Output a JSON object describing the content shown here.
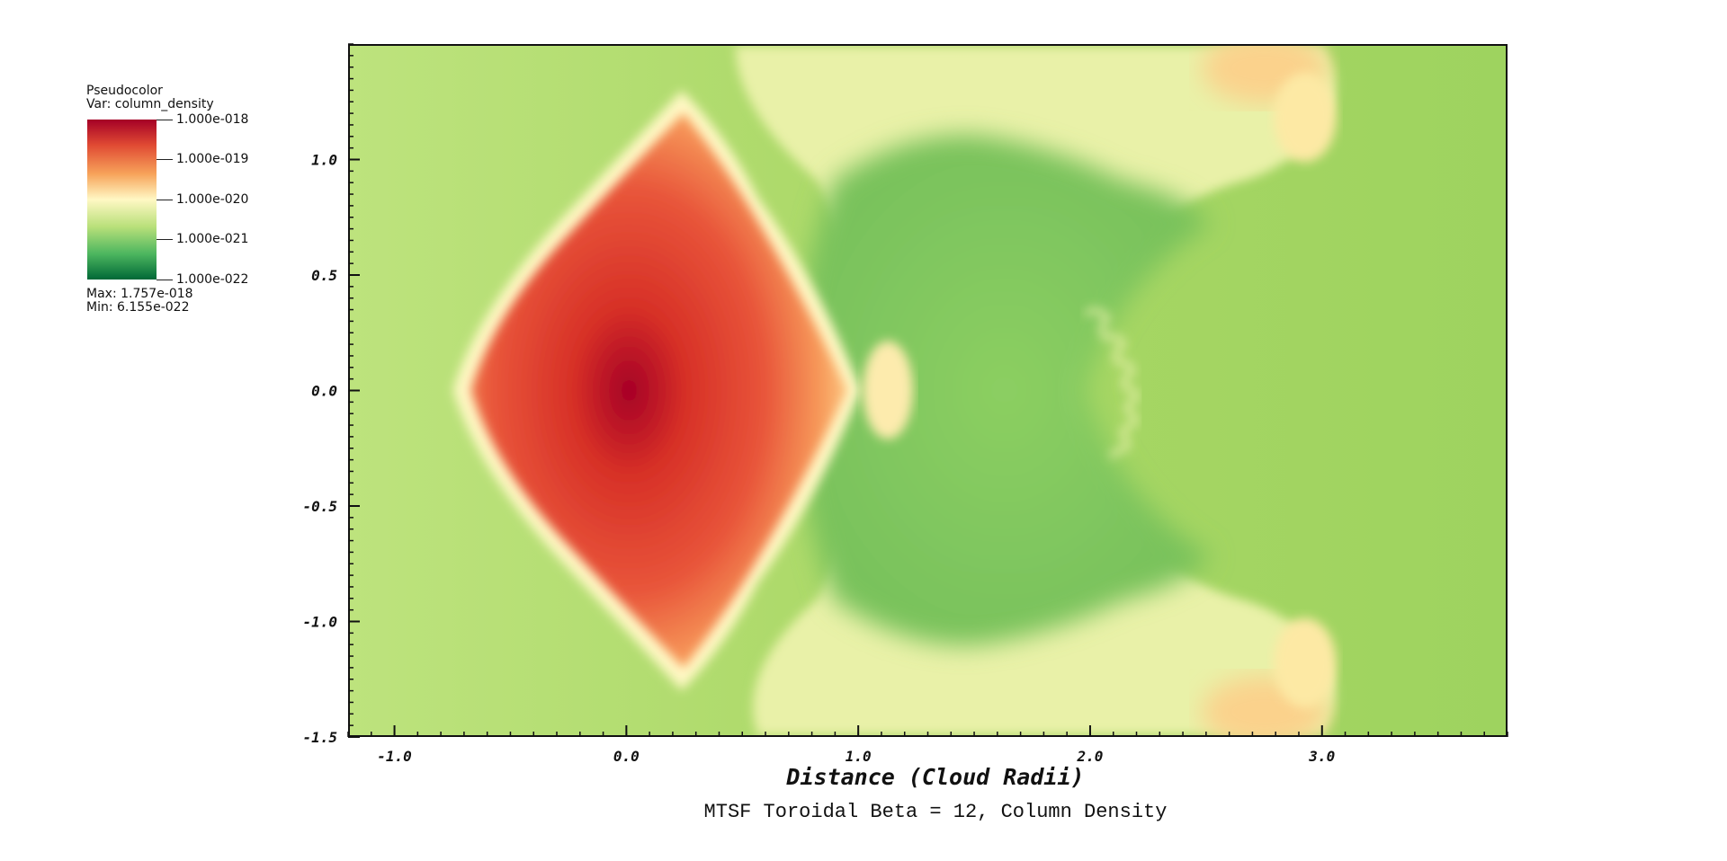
{
  "legend": {
    "plot_type": "Pseudocolor",
    "var_label": "Var: column_density",
    "ticks": [
      "1.000e-018",
      "1.000e-019",
      "1.000e-020",
      "1.000e-021",
      "1.000e-022"
    ],
    "max_label": "Max:  1.757e-018",
    "min_label": "Min:  6.155e-022",
    "colormap": [
      "#a50026",
      "#e04a33",
      "#f7a35a",
      "#fff8c4",
      "#b9e07a",
      "#4cb65f",
      "#006837"
    ]
  },
  "chart_data": {
    "type": "heatmap",
    "title": "MTSF Toroidal Beta = 12, Column Density",
    "xlabel": "Distance (Cloud Radii)",
    "ylabel": "",
    "xlim": [
      -1.2,
      3.8
    ],
    "ylim": [
      -1.5,
      1.5
    ],
    "xticks": [
      -1.0,
      0.0,
      1.0,
      2.0,
      3.0
    ],
    "xtick_labels": [
      "-1.0",
      "0.0",
      "1.0",
      "2.0",
      "3.0"
    ],
    "yticks": [
      1.0,
      0.5,
      0.0,
      -0.5,
      -1.0,
      -1.5
    ],
    "ytick_labels": [
      "1.0",
      "0.5",
      "0.0",
      "-0.5",
      "-1.0",
      "-1.5"
    ],
    "variable": "column_density",
    "color_scale": "log",
    "range": [
      6.155e-22,
      1.757e-18
    ],
    "legend_placement": "top-left",
    "grid": false
  }
}
